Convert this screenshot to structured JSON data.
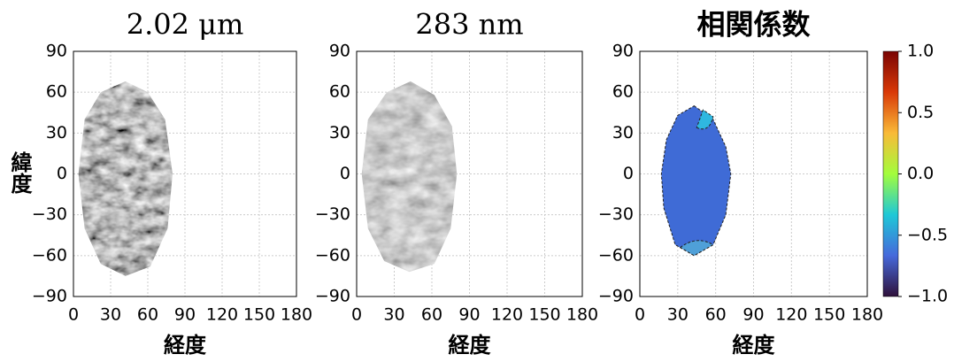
{
  "chart_data": [
    {
      "type": "image",
      "title": "2.02 μm",
      "xlabel": "経度",
      "ylabel": "緯度",
      "xlim": [
        0,
        180
      ],
      "ylim": [
        -90,
        90
      ],
      "xticks": [
        0,
        30,
        60,
        90,
        120,
        150,
        180
      ],
      "yticks": [
        {
          "value": -90,
          "label": "−90"
        },
        {
          "value": -60,
          "label": "−60"
        },
        {
          "value": -30,
          "label": "−30"
        },
        0,
        30,
        60,
        90
      ],
      "grid": true
    },
    {
      "type": "image",
      "title": "283 nm",
      "xlabel": "経度",
      "xlim": [
        0,
        180
      ],
      "ylim": [
        -90,
        90
      ],
      "xticks": [
        0,
        30,
        60,
        90,
        120,
        150,
        180
      ],
      "yticks": [
        {
          "value": -90,
          "label": "−90"
        },
        {
          "value": -60,
          "label": "−60"
        },
        {
          "value": -30,
          "label": "−30"
        },
        0,
        30,
        60,
        90
      ],
      "grid": true
    },
    {
      "type": "correlation",
      "title": "相関係数",
      "xlabel": "経度",
      "xlim": [
        0,
        180
      ],
      "ylim": [
        -90,
        90
      ],
      "xticks": [
        0,
        30,
        60,
        90,
        120,
        150,
        180
      ],
      "yticks": [
        {
          "value": -90,
          "label": "−90"
        },
        {
          "value": -60,
          "label": "−60"
        },
        {
          "value": -30,
          "label": "−30"
        },
        0,
        30,
        60,
        90
      ],
      "grid": true,
      "colorbar": {
        "lim": [
          -1,
          1
        ],
        "ticks": [
          {
            "value": 1,
            "label": "1.0"
          },
          {
            "value": 0.5,
            "label": "0.5"
          },
          {
            "value": 0,
            "label": "0.0"
          },
          {
            "value": -0.5,
            "label": "−0.5"
          },
          {
            "value": -1,
            "label": "−1.0"
          }
        ],
        "colors": [
          "#30123b",
          "#4669db",
          "#1ec8d7",
          "#a3fd3c",
          "#f9ba38",
          "#d93907",
          "#7a0403"
        ]
      }
    }
  ]
}
